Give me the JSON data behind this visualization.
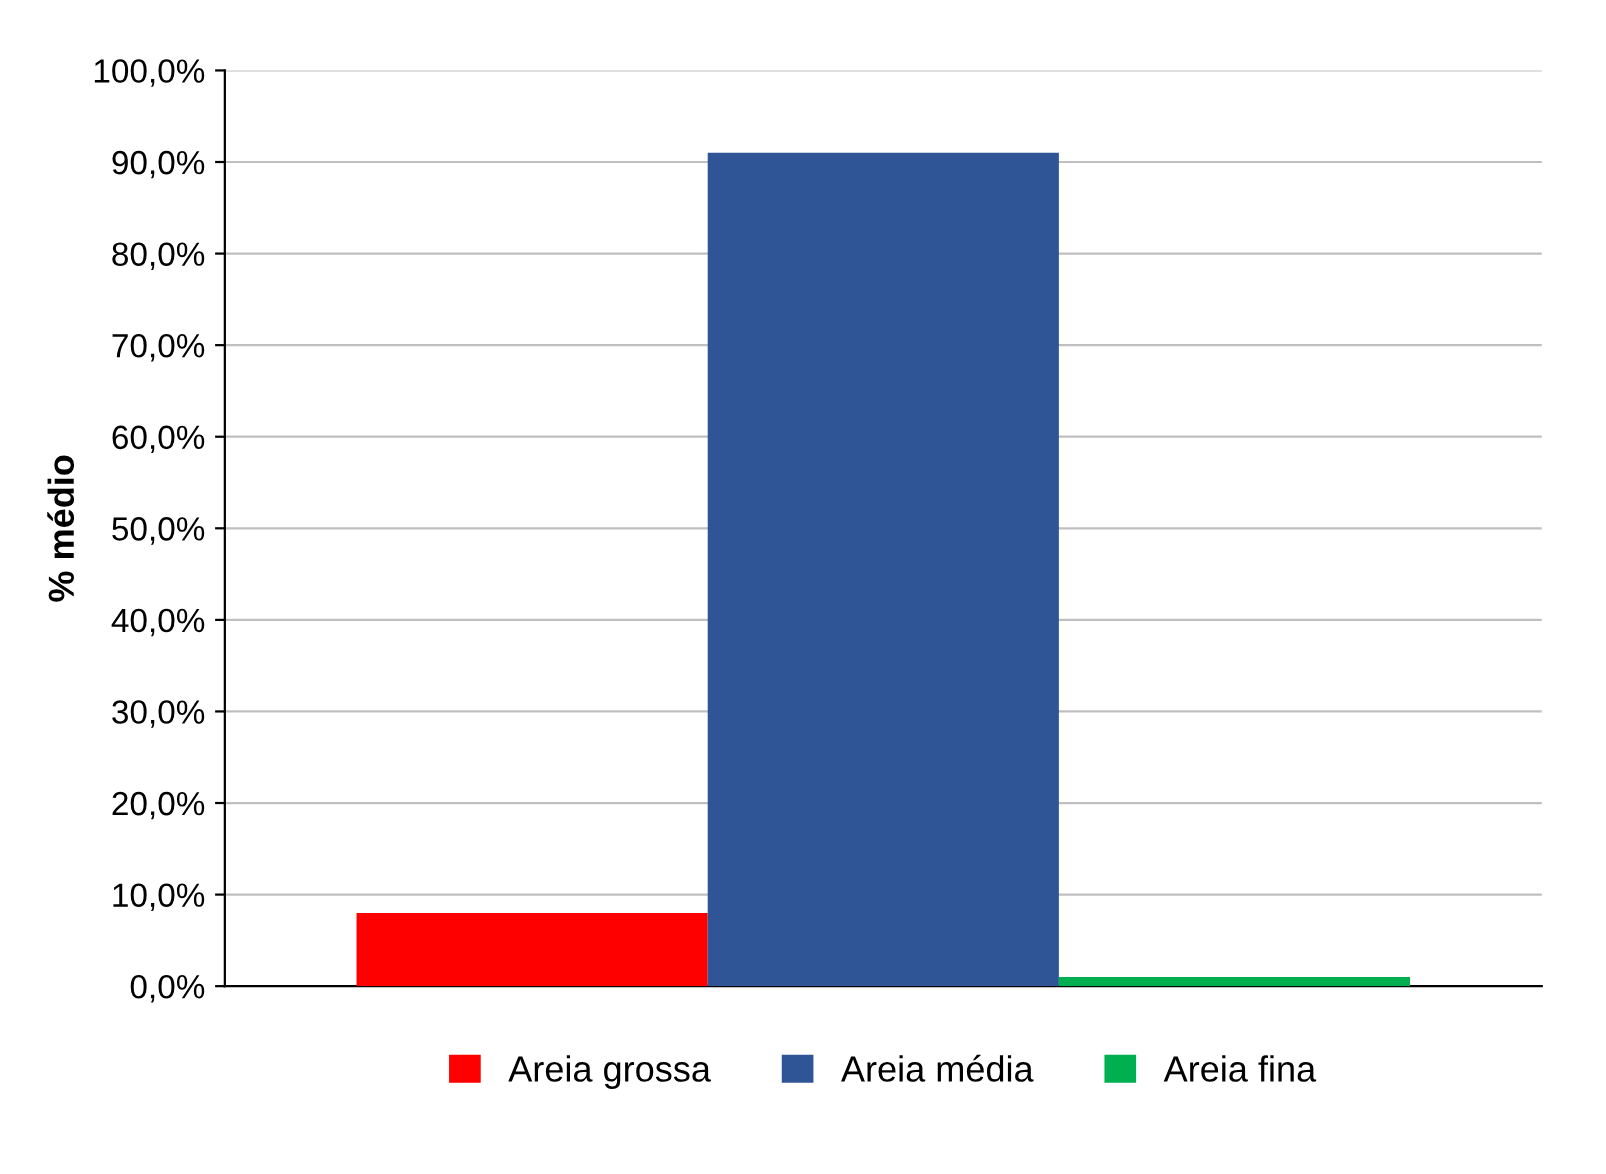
{
  "chart_data": {
    "type": "bar",
    "ylabel": "% médio",
    "categories": [
      null
    ],
    "series": [
      {
        "name": "Areia grossa",
        "color": "#ff0000",
        "values": [
          8.0
        ]
      },
      {
        "name": "Areia média",
        "color": "#2f5597",
        "values": [
          91.0
        ]
      },
      {
        "name": "Areia fina",
        "color": "#00b050",
        "values": [
          1.0
        ]
      }
    ],
    "ylim": [
      0,
      100
    ],
    "yticks": [
      {
        "value": 0,
        "label": "0,0%"
      },
      {
        "value": 10,
        "label": "10,0%"
      },
      {
        "value": 20,
        "label": "20,0%"
      },
      {
        "value": 30,
        "label": "30,0%"
      },
      {
        "value": 40,
        "label": "40,0%"
      },
      {
        "value": 50,
        "label": "50,0%"
      },
      {
        "value": 60,
        "label": "60,0%"
      },
      {
        "value": 70,
        "label": "70,0%"
      },
      {
        "value": 80,
        "label": "80,0%"
      },
      {
        "value": 90,
        "label": "90,0%"
      },
      {
        "value": 100,
        "label": "100,0%"
      }
    ],
    "grid": "y",
    "legend": "bottom"
  }
}
